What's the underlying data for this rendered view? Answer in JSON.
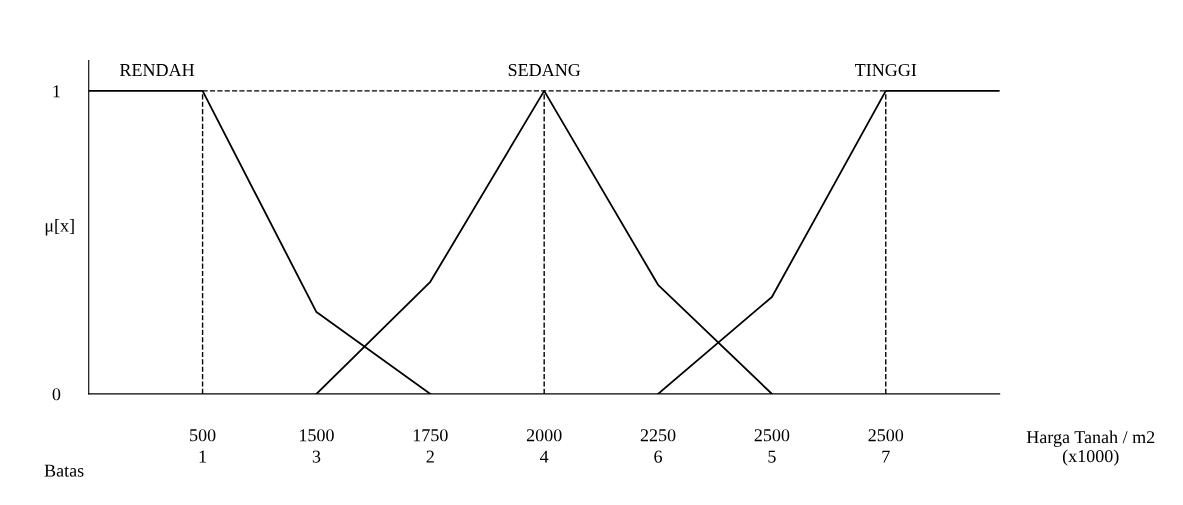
{
  "chart_data": {
    "type": "line",
    "xlabel": "Harga Tanah / m2\n(x1000)",
    "ylabel": "μ[x]",
    "categories": [
      null,
      "500\n1",
      "1500\n3",
      "1750\n2",
      "2000\n4",
      "2250\n6",
      "2500\n5",
      "2500\n7",
      null
    ],
    "series": [
      {
        "name": "RENDAH",
        "color": "#000000",
        "values": [
          1,
          1,
          0.27,
          0,
          null,
          null,
          null,
          null,
          null
        ]
      },
      {
        "name": "SEDANG",
        "color": "#000000",
        "values": [
          null,
          null,
          0,
          0.37,
          1,
          0.36,
          0,
          null,
          null
        ]
      },
      {
        "name": "TINGGI",
        "color": "#000000",
        "values": [
          null,
          null,
          null,
          null,
          null,
          0,
          0.32,
          1,
          1
        ]
      }
    ],
    "annotations": [
      "Batas"
    ],
    "ylim": [
      0,
      1.1
    ],
    "yticks": [
      0,
      1
    ],
    "ref_lines": [
      {
        "axis": "y",
        "value": 1,
        "line_style": "dashed"
      },
      {
        "axis": "x",
        "value": "500\n1",
        "line_style": "dashed"
      },
      {
        "axis": "x",
        "value": "2000\n4",
        "line_style": "dashed"
      },
      {
        "axis": "x",
        "value": "2500\n7",
        "line_style": "dashed"
      }
    ],
    "grid": false,
    "legend": false,
    "marker": "none",
    "line_style": "solid"
  }
}
